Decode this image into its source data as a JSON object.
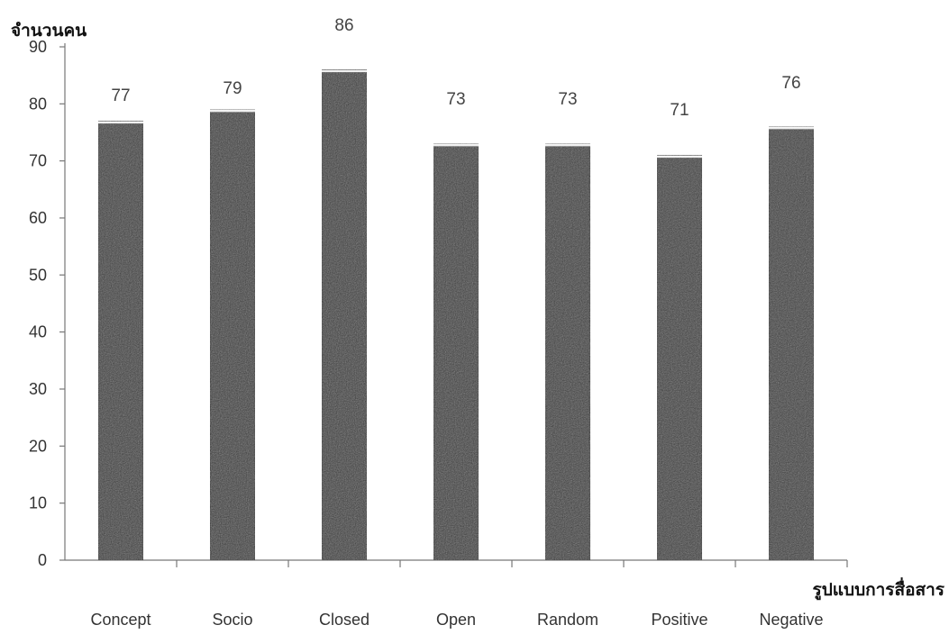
{
  "chart_data": {
    "type": "bar",
    "title": "",
    "ylabel": "จำนวนคน",
    "xlabel": "รูปแบบการสื่อสาร",
    "categories": [
      "Concept",
      "Socio",
      "Closed",
      "Open",
      "Random",
      "Positive",
      "Negative"
    ],
    "values": [
      77,
      79,
      86,
      73,
      73,
      71,
      76
    ],
    "ylim": [
      0,
      90
    ],
    "yticks": [
      0,
      10,
      20,
      30,
      40,
      50,
      60,
      70,
      80,
      90
    ],
    "grid": false,
    "legend": "none",
    "bar_color": "#3a3a3a"
  }
}
